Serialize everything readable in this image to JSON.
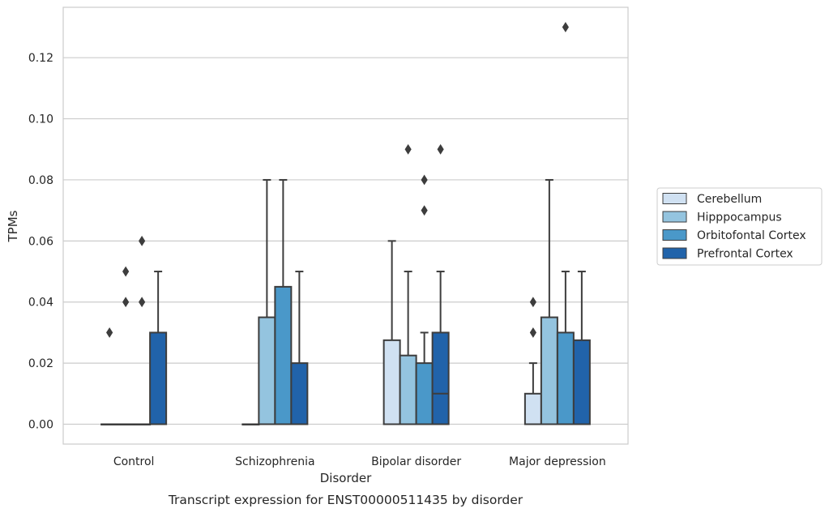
{
  "chart_data": {
    "type": "boxplot",
    "caption": "Transcript expression for ENST00000511435 by disorder",
    "xlabel": "Disorder",
    "ylabel": "TPMs",
    "ylim": [
      -0.0065,
      0.1365
    ],
    "yticks": [
      0.0,
      0.02,
      0.04,
      0.06,
      0.08,
      0.1,
      0.12
    ],
    "ytick_labels": [
      "0.00",
      "0.02",
      "0.04",
      "0.06",
      "0.08",
      "0.10",
      "0.12"
    ],
    "grid": "horizontal",
    "legend_position": "right",
    "categories": [
      "Control",
      "Schizophrenia",
      "Bipolar disorder",
      "Major depression"
    ],
    "series": [
      {
        "name": "Cerebellum",
        "color": "#d0e1f2",
        "boxes": [
          {
            "q1": 0,
            "median": 0,
            "q3": 0,
            "whisker_low": 0,
            "whisker_high": 0,
            "outliers": [
              0.03
            ]
          },
          {
            "q1": 0,
            "median": 0,
            "q3": 0,
            "whisker_low": 0,
            "whisker_high": 0,
            "outliers": []
          },
          {
            "q1": 0,
            "median": 0,
            "q3": 0.0275,
            "whisker_low": 0,
            "whisker_high": 0.06,
            "outliers": []
          },
          {
            "q1": 0,
            "median": 0,
            "q3": 0.01,
            "whisker_low": 0,
            "whisker_high": 0.02,
            "outliers": [
              0.03,
              0.04
            ]
          }
        ]
      },
      {
        "name": "Hipppocampus",
        "color": "#94c4df",
        "boxes": [
          {
            "q1": 0,
            "median": 0,
            "q3": 0,
            "whisker_low": 0,
            "whisker_high": 0,
            "outliers": [
              0.04,
              0.05
            ]
          },
          {
            "q1": 0,
            "median": 0,
            "q3": 0.035,
            "whisker_low": 0,
            "whisker_high": 0.08,
            "outliers": []
          },
          {
            "q1": 0,
            "median": 0,
            "q3": 0.0225,
            "whisker_low": 0,
            "whisker_high": 0.05,
            "outliers": [
              0.09
            ]
          },
          {
            "q1": 0,
            "median": 0,
            "q3": 0.035,
            "whisker_low": 0,
            "whisker_high": 0.08,
            "outliers": []
          }
        ]
      },
      {
        "name": "Orbitofontal Cortex",
        "color": "#4a98c9",
        "boxes": [
          {
            "q1": 0,
            "median": 0,
            "q3": 0,
            "whisker_low": 0,
            "whisker_high": 0,
            "outliers": [
              0.04,
              0.06
            ]
          },
          {
            "q1": 0,
            "median": 0,
            "q3": 0.045,
            "whisker_low": 0,
            "whisker_high": 0.08,
            "outliers": []
          },
          {
            "q1": 0,
            "median": 0,
            "q3": 0.02,
            "whisker_low": 0,
            "whisker_high": 0.03,
            "outliers": [
              0.07,
              0.08
            ]
          },
          {
            "q1": 0,
            "median": 0,
            "q3": 0.03,
            "whisker_low": 0,
            "whisker_high": 0.05,
            "outliers": [
              0.13
            ]
          }
        ]
      },
      {
        "name": "Prefrontal Cortex",
        "color": "#2163aa",
        "boxes": [
          {
            "q1": 0,
            "median": 0,
            "q3": 0.03,
            "whisker_low": 0,
            "whisker_high": 0.05,
            "outliers": []
          },
          {
            "q1": 0,
            "median": 0,
            "q3": 0.02,
            "whisker_low": 0,
            "whisker_high": 0.05,
            "outliers": []
          },
          {
            "q1": 0,
            "median": 0.01,
            "q3": 0.03,
            "whisker_low": 0,
            "whisker_high": 0.05,
            "outliers": [
              0.09
            ]
          },
          {
            "q1": 0,
            "median": 0,
            "q3": 0.0275,
            "whisker_low": 0,
            "whisker_high": 0.05,
            "outliers": []
          }
        ]
      }
    ]
  }
}
